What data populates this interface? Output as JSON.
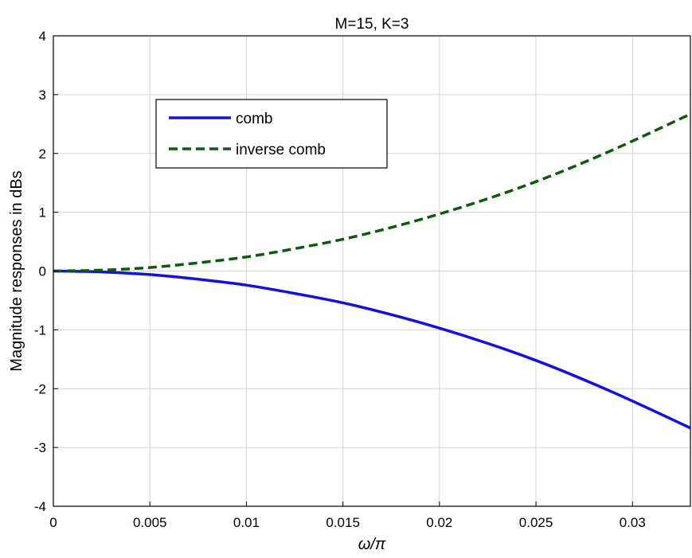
{
  "chart_data": {
    "type": "line",
    "title": "M=15, K=3",
    "xlabel": "ω/π",
    "ylabel": "Magnitude responses in dBs",
    "xlim": [
      0,
      0.033
    ],
    "ylim": [
      -4,
      4
    ],
    "xticks": [
      "0",
      "0.005",
      "0.01",
      "0.015",
      "0.02",
      "0.025",
      "0.03"
    ],
    "xtick_values": [
      0,
      0.005,
      0.01,
      0.015,
      0.02,
      0.025,
      0.03
    ],
    "yticks": [
      "4",
      "3",
      "2",
      "1",
      "0",
      "-1",
      "-2",
      "-3",
      "-4"
    ],
    "ytick_values": [
      4,
      3,
      2,
      1,
      0,
      -1,
      -2,
      -3,
      -4
    ],
    "grid": true,
    "legend_position": "top-left",
    "series": [
      {
        "name": "comb",
        "color": "#1010ee",
        "style": "solid",
        "x": [
          0,
          0.0025,
          0.005,
          0.0075,
          0.01,
          0.0125,
          0.015,
          0.0175,
          0.02,
          0.0225,
          0.025,
          0.0275,
          0.03,
          0.033
        ],
        "y": [
          0,
          -0.015,
          -0.06,
          -0.14,
          -0.24,
          -0.38,
          -0.54,
          -0.74,
          -0.97,
          -1.23,
          -1.52,
          -1.85,
          -2.21,
          -2.67
        ]
      },
      {
        "name": "inverse comb",
        "color": "#0a5c0a",
        "style": "dashed",
        "x": [
          0,
          0.0025,
          0.005,
          0.0075,
          0.01,
          0.0125,
          0.015,
          0.0175,
          0.02,
          0.0225,
          0.025,
          0.0275,
          0.03,
          0.033
        ],
        "y": [
          0,
          0.015,
          0.06,
          0.14,
          0.24,
          0.38,
          0.54,
          0.74,
          0.97,
          1.23,
          1.52,
          1.85,
          2.21,
          2.67
        ]
      }
    ]
  }
}
